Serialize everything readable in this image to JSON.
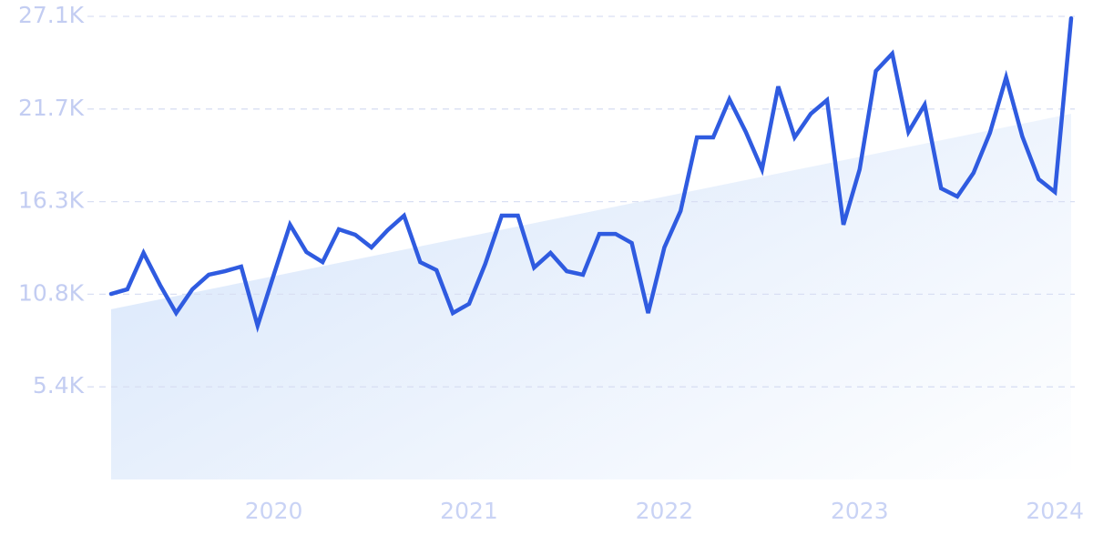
{
  "chart_data": {
    "type": "line",
    "x": [
      2019.167,
      2019.25,
      2019.333,
      2019.417,
      2019.5,
      2019.583,
      2019.667,
      2019.75,
      2019.833,
      2019.917,
      2020.0,
      2020.083,
      2020.167,
      2020.25,
      2020.333,
      2020.417,
      2020.5,
      2020.583,
      2020.667,
      2020.75,
      2020.833,
      2020.917,
      2021.0,
      2021.083,
      2021.167,
      2021.25,
      2021.333,
      2021.417,
      2021.5,
      2021.583,
      2021.667,
      2021.75,
      2021.833,
      2021.917,
      2022.0,
      2022.083,
      2022.167,
      2022.25,
      2022.333,
      2022.417,
      2022.5,
      2022.583,
      2022.667,
      2022.75,
      2022.833,
      2022.917,
      2023.0,
      2023.083,
      2023.167,
      2023.25,
      2023.333,
      2023.417,
      2023.5,
      2023.583,
      2023.667,
      2023.75,
      2023.833,
      2023.917,
      2024.0,
      2024.083
    ],
    "series": [
      {
        "color": "#2f5be0",
        "values": [
          10860,
          11130,
          13260,
          11390,
          9740,
          11130,
          11980,
          12190,
          12460,
          9000,
          11980,
          14910,
          13310,
          12720,
          14640,
          14320,
          13580,
          14590,
          15440,
          12720,
          12250,
          9740,
          10280,
          12620,
          15440,
          15440,
          12400,
          13260,
          12190,
          11980,
          14370,
          14370,
          13840,
          9740,
          13580,
          15710,
          20020,
          20020,
          22250,
          20340,
          18150,
          23000,
          20020,
          21400,
          22200,
          14910,
          18150,
          23900,
          24920,
          20340,
          21930,
          17040,
          16560,
          17940,
          20280,
          23530,
          20070,
          17570,
          16820,
          26990
        ]
      }
    ],
    "trend": {
      "color": "#dbe8fb",
      "values": [
        9960,
        21400
      ]
    },
    "xlim": [
      2019.167,
      2024.083
    ],
    "xticks": [
      2020,
      2021,
      2022,
      2023,
      2024
    ],
    "ylim": [
      0,
      27100
    ],
    "yticks": [
      {
        "value": 5420,
        "label": "5.4K"
      },
      {
        "value": 10840,
        "label": "10.8K"
      },
      {
        "value": 16260,
        "label": "16.3K"
      },
      {
        "value": 21680,
        "label": "21.7K"
      },
      {
        "value": 27100,
        "label": "27.1K"
      }
    ],
    "grid": true
  }
}
